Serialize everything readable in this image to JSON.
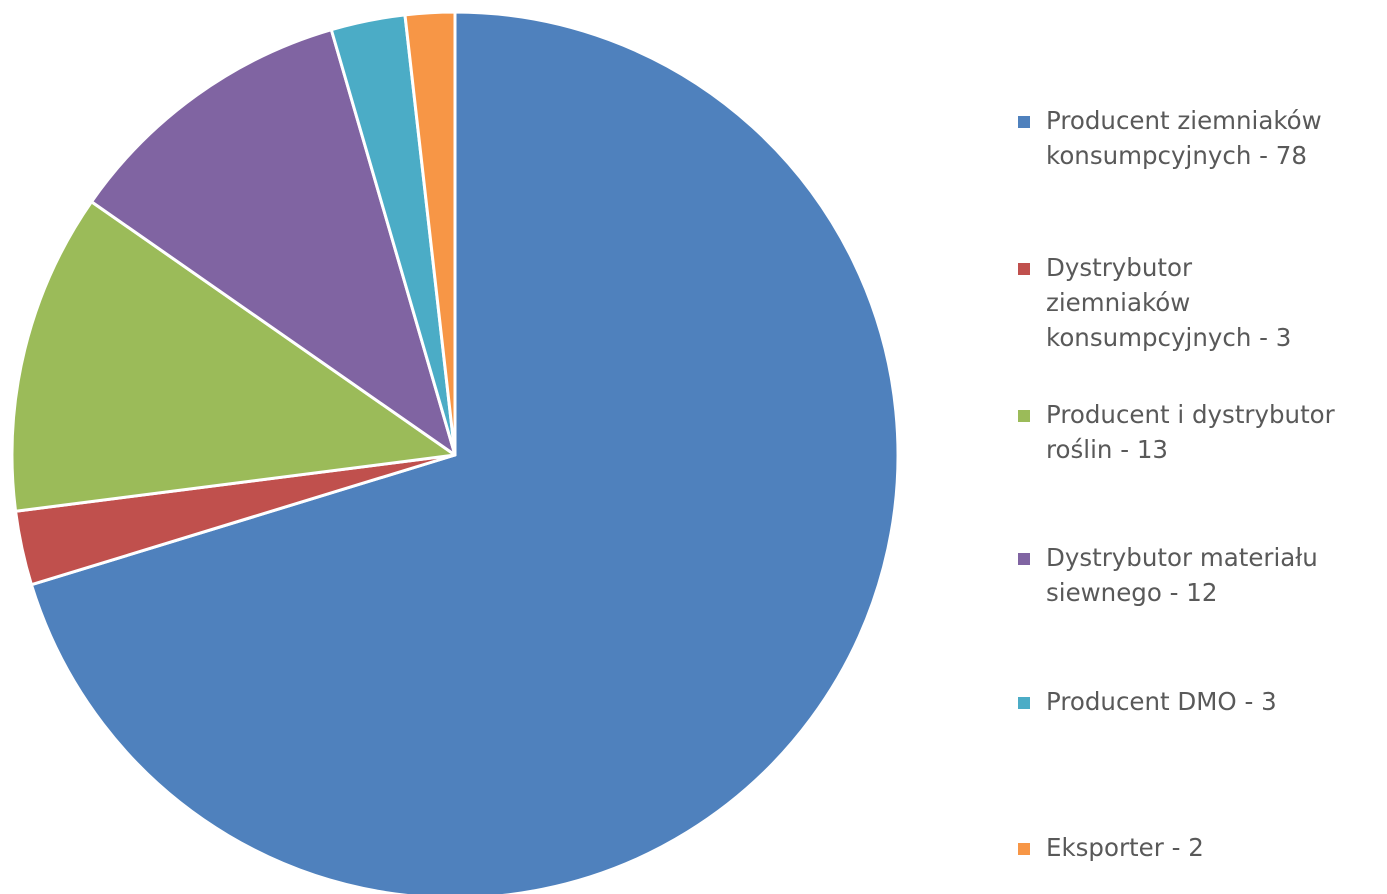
{
  "chart_data": {
    "type": "pie",
    "title": "",
    "categories": [
      "Producent ziemniaków konsumpcyjnych - 78",
      "Dystrybutor ziemniaków konsumpcyjnych - 3",
      "Producent i dystrybutor roślin - 13",
      "Dystrybutor materiału siewnego - 12",
      "Producent DMO - 3",
      "Eksporter - 2"
    ],
    "values": [
      78,
      3,
      13,
      12,
      3,
      2
    ],
    "colors": [
      "#4f81bd",
      "#c0504d",
      "#9bbb59",
      "#8064a2",
      "#4bacc6",
      "#f79646"
    ],
    "legend_position": "right",
    "legend": [
      {
        "label_lines": [
          "Producent ziemniaków",
          "konsumpcyjnych - 78"
        ],
        "color": "#4f81bd"
      },
      {
        "label_lines": [
          "Dystrybutor",
          "ziemniaków",
          "konsumpcyjnych - 3"
        ],
        "color": "#c0504d"
      },
      {
        "label_lines": [
          "Producent i dystrybutor",
          "roślin - 13"
        ],
        "color": "#9bbb59"
      },
      {
        "label_lines": [
          "Dystrybutor materiału",
          "siewnego - 12"
        ],
        "color": "#8064a2"
      },
      {
        "label_lines": [
          "Producent DMO - 3"
        ],
        "color": "#4bacc6"
      },
      {
        "label_lines": [
          "Eksporter - 2"
        ],
        "color": "#f79646"
      }
    ]
  }
}
